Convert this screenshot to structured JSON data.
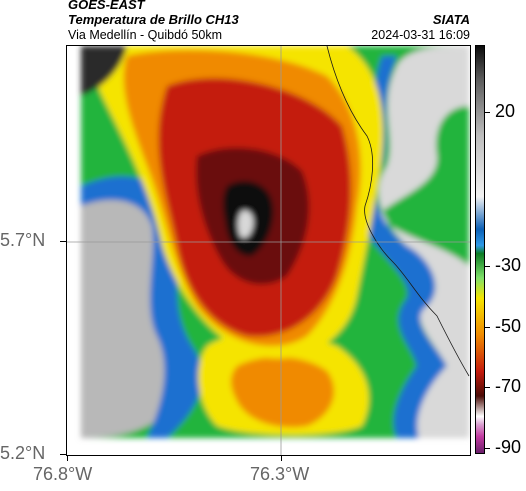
{
  "header": {
    "satellite": "GOES-EAST",
    "product": "Temperatura de Brillo CH13",
    "location": "Via Medellín - Quibdó 50km",
    "source": "SIATA",
    "timestamp": "2024-03-31 16:09"
  },
  "axes": {
    "lat_labels": [
      "5.7°N",
      "5.2°N"
    ],
    "lon_labels": [
      "76.8°W",
      "76.3°W"
    ]
  },
  "colorbar": {
    "tick_labels": [
      "20",
      "-30",
      "-50",
      "-70",
      "-90"
    ],
    "units_implied": "°C"
  },
  "colors": {
    "warm_gray": "#bdbdbd",
    "blue": "#1e6fd0",
    "green": "#22b43c",
    "yellow": "#f5e400",
    "orange": "#f08a00",
    "red": "#c41a0c",
    "darkred": "#6a0f08",
    "black": "#111111",
    "magenta": "#c23aa0"
  }
}
